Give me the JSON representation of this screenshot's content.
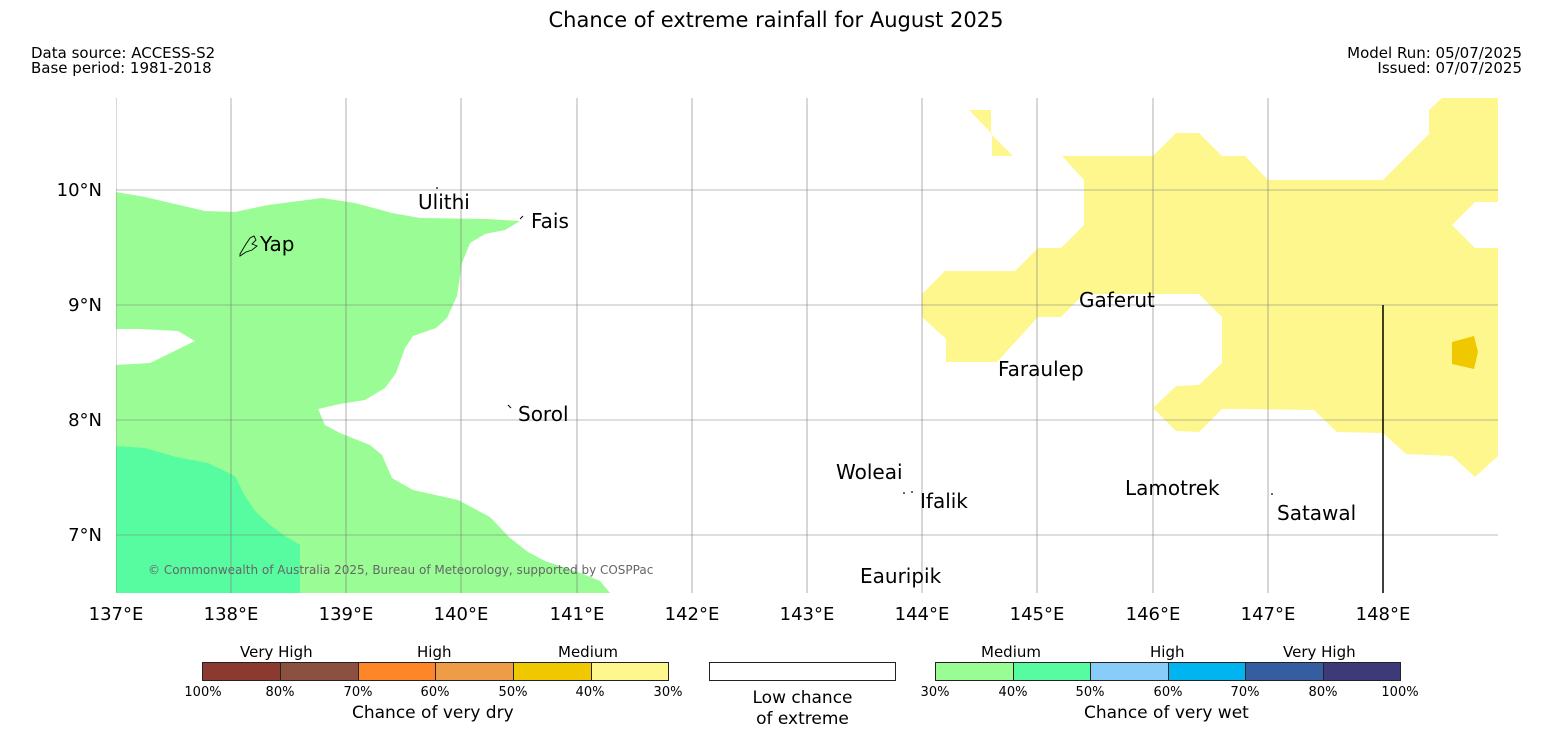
{
  "title": "Chance of extreme rainfall for August 2025",
  "meta": {
    "data_source": "Data source: ACCESS-S2",
    "base_period": "Base period: 1981-2018",
    "model_run": "Model Run: 05/07/2025",
    "issued": "Issued: 07/07/2025"
  },
  "map": {
    "lon_labels": [
      "137°E",
      "138°E",
      "139°E",
      "140°E",
      "141°E",
      "142°E",
      "143°E",
      "144°E",
      "145°E",
      "146°E",
      "147°E",
      "148°E"
    ],
    "lat_labels": [
      "10°N",
      "9°N",
      "8°N",
      "7°N"
    ],
    "places": [
      "Ulithi",
      "Fais",
      "Yap",
      "Gaferut",
      "Faraulep",
      "Sorol",
      "Woleai",
      "Ifalik",
      "Lamotrek",
      "Satawal",
      "Eauripik"
    ],
    "copyright": "© Commonwealth of Australia 2025, Bureau of Meteorology, supported by COSPPac",
    "colors": {
      "wet_medium_low": "#9afc94",
      "wet_medium_high": "#57fca0",
      "dry_medium_low": "#fdf78e",
      "dry_medium_high": "#f0c800"
    }
  },
  "legend": {
    "dry": {
      "categories": [
        "Very High",
        "High",
        "Medium"
      ],
      "ticks": [
        "100%",
        "80%",
        "70%",
        "60%",
        "50%",
        "40%",
        "30%"
      ],
      "caption": "Chance of very dry",
      "colors": [
        "#8c3a30",
        "#8b5040",
        "#fd8628",
        "#ef9c48",
        "#f0c800",
        "#fdf78e"
      ]
    },
    "low": {
      "caption_line1": "Low chance",
      "caption_line2": "of extreme",
      "color": "#ffffff"
    },
    "wet": {
      "categories": [
        "Medium",
        "High",
        "Very High"
      ],
      "ticks": [
        "30%",
        "40%",
        "50%",
        "60%",
        "70%",
        "80%",
        "100%"
      ],
      "caption": "Chance of very wet",
      "colors": [
        "#9afc94",
        "#57fca0",
        "#88ccfa",
        "#00b4f0",
        "#345ea0",
        "#3e3a7a"
      ]
    }
  }
}
